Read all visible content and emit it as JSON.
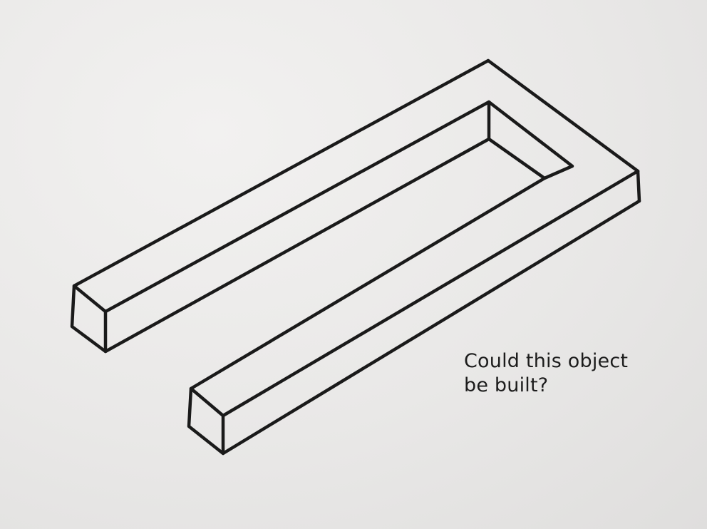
{
  "caption": {
    "line1": "Could this object",
    "line2": "be built?"
  },
  "figure": {
    "subject": "impossible U-shaped bar (blivet-style illusion)",
    "stroke_color": "#1a1a1a",
    "paper_color": "#ecebea"
  }
}
